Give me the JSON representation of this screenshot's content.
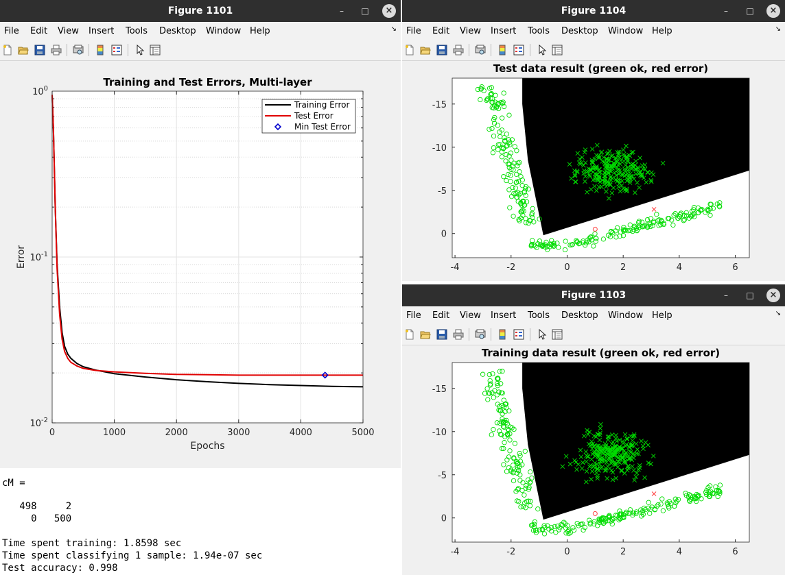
{
  "menu": [
    "File",
    "Edit",
    "View",
    "Insert",
    "Tools",
    "Desktop",
    "Window",
    "Help"
  ],
  "windows": {
    "fig1101": {
      "title": "Figure 1101"
    },
    "fig1104": {
      "title": "Figure 1104"
    },
    "fig1103": {
      "title": "Figure 1103"
    }
  },
  "window_controls": {
    "minimize": "–",
    "maximize": "□",
    "close": "×"
  },
  "toolbar_icons": [
    "new-figure-icon",
    "open-file-icon",
    "save-icon",
    "print-icon",
    "print-preview-icon",
    "colorbar-icon",
    "legend-icon",
    "pointer-icon",
    "property-editor-icon"
  ],
  "colors": {
    "training": "#000000",
    "test": "#e00000",
    "min": "#0000cc",
    "ok": "#00dd00",
    "err": "#ff3b3b"
  },
  "chart_data": [
    {
      "type": "line",
      "title": "Training and Test Errors, Multi-layer",
      "xlabel": "Epochs",
      "ylabel": "Error",
      "xlim": [
        0,
        5000
      ],
      "ylim": [
        0.01,
        1
      ],
      "yscale": "log",
      "grid": true,
      "legend_position": "top-right",
      "xticks": [
        "0",
        "1000",
        "2000",
        "3000",
        "4000",
        "5000"
      ],
      "yticks": [
        {
          "base": "10",
          "exp": "0"
        },
        {
          "base": "10",
          "exp": "-1"
        },
        {
          "base": "10",
          "exp": "-2"
        }
      ],
      "series": [
        {
          "name": "Training Error",
          "x": [
            0,
            20,
            50,
            80,
            120,
            160,
            200,
            250,
            300,
            400,
            500,
            700,
            1000,
            1500,
            2000,
            2500,
            3000,
            3500,
            4000,
            4500,
            5000
          ],
          "values": [
            0.95,
            0.6,
            0.2,
            0.09,
            0.05,
            0.035,
            0.029,
            0.026,
            0.0245,
            0.0228,
            0.0218,
            0.0208,
            0.0198,
            0.0189,
            0.0182,
            0.0177,
            0.0173,
            0.017,
            0.0168,
            0.0166,
            0.0165
          ]
        },
        {
          "name": "Test Error",
          "x": [
            0,
            20,
            50,
            80,
            120,
            160,
            200,
            250,
            300,
            400,
            500,
            700,
            1000,
            1500,
            2000,
            2500,
            3000,
            3500,
            4000,
            4500,
            5000
          ],
          "values": [
            0.95,
            0.6,
            0.2,
            0.085,
            0.045,
            0.032,
            0.027,
            0.0245,
            0.0232,
            0.022,
            0.0213,
            0.0207,
            0.0203,
            0.0199,
            0.0196,
            0.0195,
            0.0194,
            0.0194,
            0.0194,
            0.0194,
            0.0194
          ]
        },
        {
          "name": "Min Test Error",
          "x": [
            4390
          ],
          "values": [
            0.0194
          ]
        }
      ]
    },
    {
      "type": "scatter",
      "title": "Test data result (green ok, red error)",
      "xlim": [
        -4.1,
        6.5
      ],
      "ylim": [
        -18,
        2.8
      ],
      "y_reversed": true,
      "xticks": [
        "-4",
        "-2",
        "0",
        "2",
        "4",
        "6"
      ],
      "yticks": [
        "-15",
        "-10",
        "-5",
        "0"
      ],
      "background": "decision regions: black (class 2), white (class 1)",
      "misclassified_points": 2
    },
    {
      "type": "scatter",
      "title": "Training data result (green ok, red error)",
      "xlim": [
        -4.1,
        6.5
      ],
      "ylim": [
        -18,
        2.8
      ],
      "y_reversed": true,
      "xticks": [
        "-4",
        "-2",
        "0",
        "2",
        "4",
        "6"
      ],
      "yticks": [
        "-15",
        "-10",
        "-5",
        "0"
      ],
      "background": "decision regions: black (class 2), white (class 1)",
      "misclassified_points": 2
    }
  ],
  "console": {
    "lines": [
      "cM =",
      "",
      "   498     2",
      "     0   500",
      "",
      "Time spent training: 1.8598 sec",
      "Time spent classifying 1 sample: 1.94e-07 sec",
      "Test accuracy: 0.998"
    ]
  }
}
